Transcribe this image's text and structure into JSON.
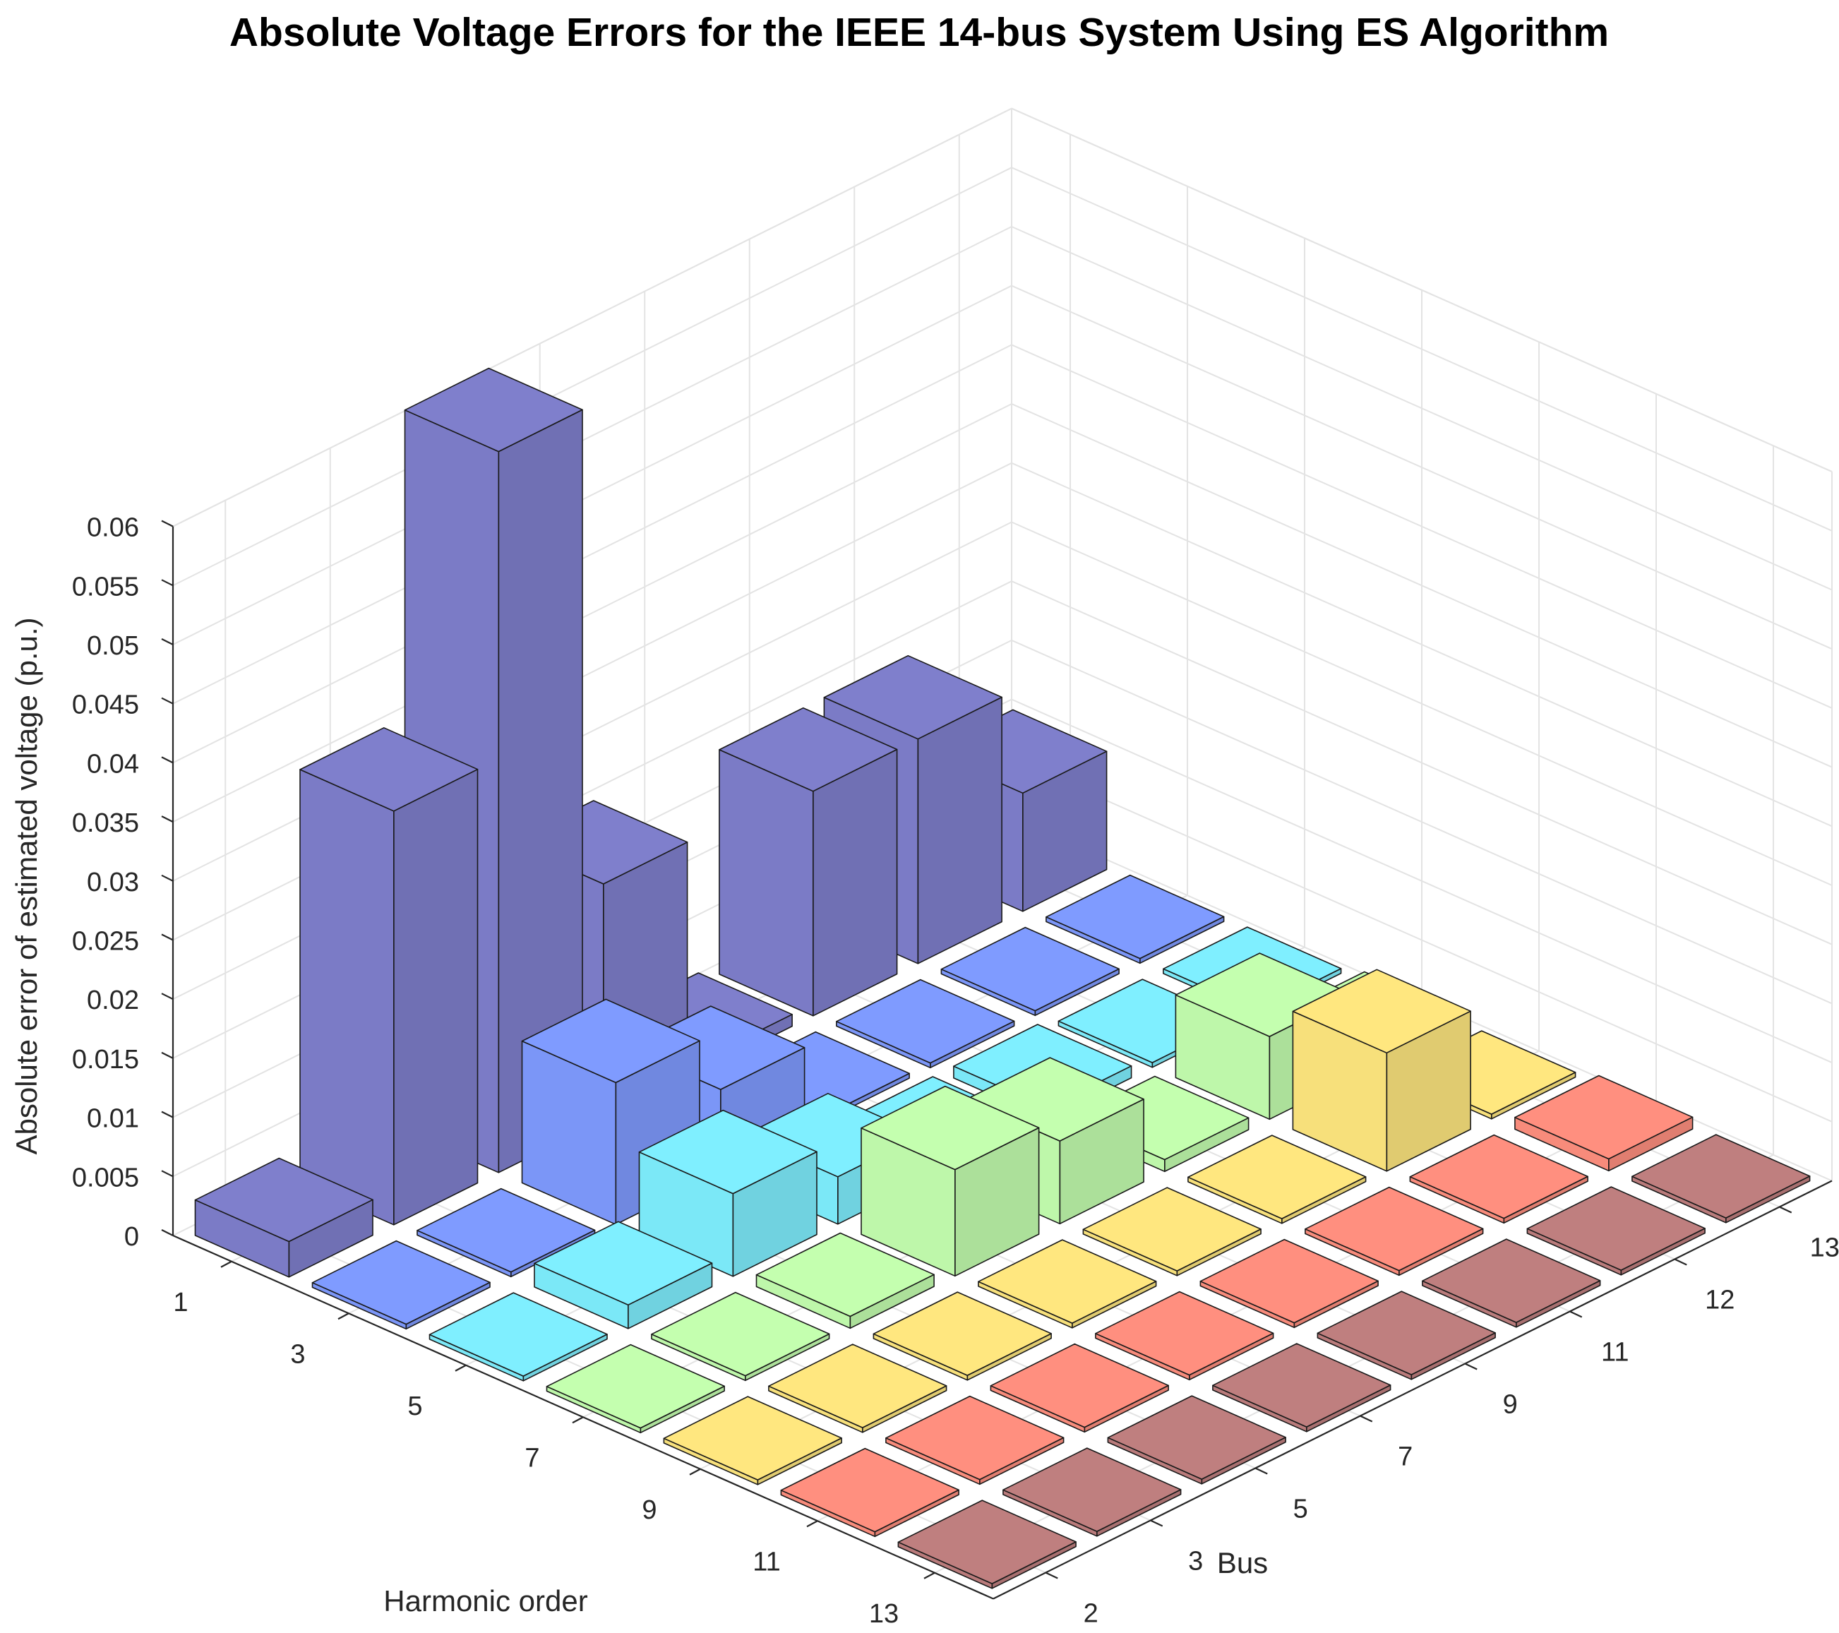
{
  "chart_data": {
    "type": "bar3d",
    "title": "Absolute Voltage Errors for the IEEE 14-bus System Using ES Algorithm",
    "xlabel": "Harmonic order",
    "ylabel": "Bus",
    "zlabel": "Absolute error of estimated voltage (p.u.)",
    "harmonic_orders": [
      "1",
      "3",
      "5",
      "7",
      "9",
      "11",
      "13"
    ],
    "buses": [
      "2",
      "3",
      "5",
      "7",
      "9",
      "11",
      "12",
      "13"
    ],
    "zlim": [
      0,
      0.06
    ],
    "zticks": [
      "0",
      "0.005",
      "0.01",
      "0.015",
      "0.02",
      "0.025",
      "0.03",
      "0.035",
      "0.04",
      "0.045",
      "0.05",
      "0.055",
      "0.06"
    ],
    "grid": true,
    "colors": [
      "#7f7fcc",
      "#7f9bff",
      "#7fefff",
      "#c4ffaf",
      "#ffe77f",
      "#ff8f7f",
      "#bf7f7f"
    ],
    "color_by": "harmonic_order",
    "values": [
      [
        0.003,
        0.035,
        0.061,
        0.02,
        0.001,
        0.019,
        0.019,
        0.01
      ],
      [
        0,
        0,
        0.012,
        0.007,
        0,
        0,
        0,
        0
      ],
      [
        0,
        0.002,
        0.007,
        0.004,
        0.001,
        0.001,
        0,
        0
      ],
      [
        0,
        0,
        0.001,
        0.009,
        0.007,
        0.001,
        0.007,
        0.001
      ],
      [
        0,
        0,
        0,
        0,
        0,
        0,
        0.01,
        0
      ],
      [
        0,
        0,
        0,
        0,
        0,
        0,
        0,
        0.001
      ],
      [
        0,
        0,
        0,
        0,
        0,
        0,
        0,
        0
      ]
    ]
  }
}
